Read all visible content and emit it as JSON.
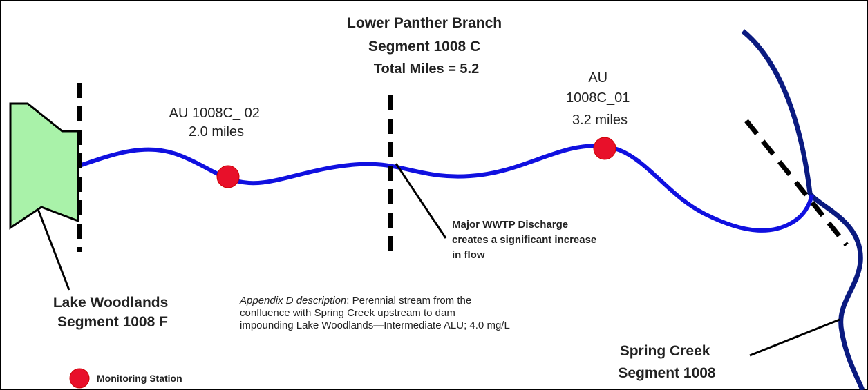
{
  "title": {
    "lines": [
      "Lower Panther Branch",
      "Segment 1008 C",
      "Total Miles = 5.2"
    ]
  },
  "au_02": {
    "lines": [
      "AU 1008C_ 02",
      "2.0 miles"
    ]
  },
  "au_01": {
    "lines": [
      "AU",
      "1008C_01",
      "3.2 miles"
    ]
  },
  "wwtp": {
    "lines": [
      "Major WWTP Discharge",
      "creates a significant increase",
      "in flow"
    ]
  },
  "lake": {
    "lines": [
      "Lake Woodlands",
      "Segment 1008 F"
    ]
  },
  "appendix": {
    "label": "Appendix D description",
    "lines": [
      ": Perennial stream from the",
      "confluence with Spring Creek upstream to dam",
      "impounding Lake Woodlands—Intermediate ALU; 4.0 mg/L"
    ]
  },
  "spring_creek": {
    "lines": [
      "Spring Creek",
      "Segment 1008"
    ]
  },
  "legend": {
    "label": "Monitoring Station"
  }
}
